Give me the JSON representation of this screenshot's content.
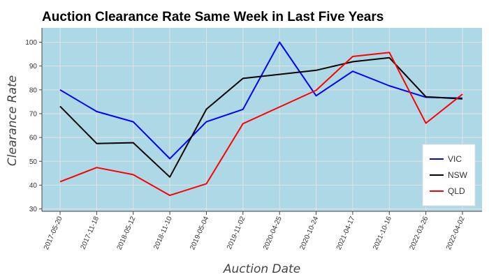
{
  "chart_data": {
    "type": "line",
    "title": "Auction Clearance Rate Same Week in Last Five Years",
    "xlabel": "Auction Date",
    "ylabel": "Clearance Rate",
    "ylim": [
      29,
      106
    ],
    "yticks": [
      30,
      40,
      50,
      60,
      70,
      80,
      90,
      100
    ],
    "grid": true,
    "legend_position": "bottom-right",
    "plot_background": "#add8e6",
    "categories": [
      "2017-05-20",
      "2017-11-18",
      "2018-05-12",
      "2018-11-10",
      "2019-05-04",
      "2019-11-02",
      "2020-04-25",
      "2020-10-24",
      "2021-04-17",
      "2021-10-16",
      "2022-03-26",
      "2022-04-02"
    ],
    "series": [
      {
        "name": "VIC",
        "color": "#0000ff",
        "values": [
          80.0,
          70.9,
          66.6,
          51.1,
          66.6,
          71.8,
          100.0,
          77.5,
          87.8,
          81.7,
          76.9,
          76.5
        ]
      },
      {
        "name": "NSW",
        "color": "#000000",
        "values": [
          73.1,
          57.5,
          57.8,
          43.4,
          71.9,
          84.8,
          86.5,
          88.2,
          91.8,
          93.5,
          77.1,
          76.2
        ]
      },
      {
        "name": "QLD",
        "color": "#ff0000",
        "values": [
          41.4,
          47.4,
          44.4,
          35.7,
          40.6,
          65.8,
          72.8,
          79.8,
          94.0,
          95.7,
          66.0,
          78.2
        ]
      }
    ]
  }
}
